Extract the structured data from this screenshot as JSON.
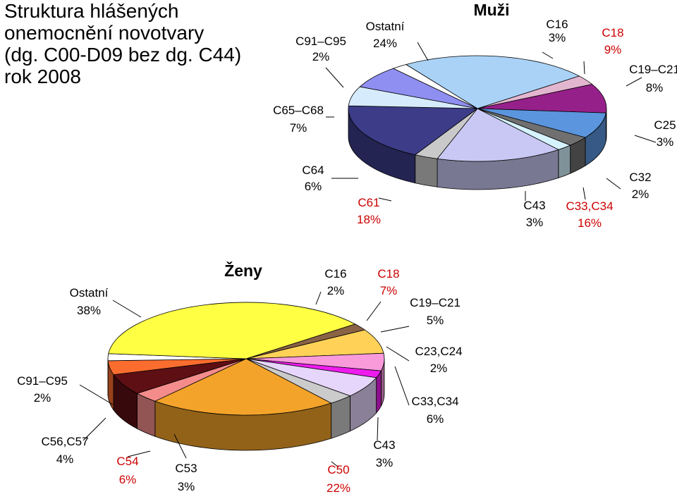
{
  "title_lines": [
    "Struktura hlášených",
    "onemocnění novotvary",
    "(dg. C00-D09 bez dg. C44)",
    "rok 2008"
  ],
  "chart_data": [
    {
      "type": "pie",
      "title": "Muži",
      "slices": [
        {
          "label": "C16",
          "pct": "3%",
          "value": 3,
          "color": "#e3b6cf",
          "label_color": "#000000"
        },
        {
          "label": "C18",
          "pct": "9%",
          "value": 9,
          "color": "#96208a",
          "label_color": "#cc0000"
        },
        {
          "label": "C19–C21",
          "pct": "8%",
          "value": 8,
          "color": "#5b95dd",
          "label_color": "#000000"
        },
        {
          "label": "C25",
          "pct": "3%",
          "value": 3,
          "color": "#707070",
          "label_color": "#000000"
        },
        {
          "label": "C32",
          "pct": "2%",
          "value": 2,
          "color": "#d5f3ff",
          "label_color": "#000000"
        },
        {
          "label": "C33,C34",
          "pct": "16%",
          "value": 16,
          "color": "#c9c8f4",
          "label_color": "#cc0000"
        },
        {
          "label": "C43",
          "pct": "3%",
          "value": 3,
          "color": "#c9c9c9",
          "label_color": "#000000"
        },
        {
          "label": "C61",
          "pct": "18%",
          "value": 18,
          "color": "#3c3c88",
          "label_color": "#cc0000"
        },
        {
          "label": "C64",
          "pct": "6%",
          "value": 6,
          "color": "#d6ecfc",
          "label_color": "#000000"
        },
        {
          "label": "C65–C68",
          "pct": "7%",
          "value": 7,
          "color": "#8f8ff2",
          "label_color": "#000000"
        },
        {
          "label": "C91–C95",
          "pct": "2%",
          "value": 2,
          "color": "#ffffff",
          "label_color": "#000000"
        },
        {
          "label": "Ostatní",
          "pct": "24%",
          "value": 24,
          "color": "#a9d2f6",
          "label_color": "#000000"
        }
      ]
    },
    {
      "type": "pie",
      "title": "Ženy",
      "slices": [
        {
          "label": "C16",
          "pct": "2%",
          "value": 2,
          "color": "#8a6246",
          "label_color": "#000000"
        },
        {
          "label": "C18",
          "pct": "7%",
          "value": 7,
          "color": "#ffd257",
          "label_color": "#cc0000"
        },
        {
          "label": "C19–C21",
          "pct": "5%",
          "value": 5,
          "color": "#f99adb",
          "label_color": "#000000"
        },
        {
          "label": "C23,C24",
          "pct": "2%",
          "value": 2,
          "color": "#ee1bee",
          "label_color": "#000000"
        },
        {
          "label": "C33,C34",
          "pct": "6%",
          "value": 6,
          "color": "#e6d6fb",
          "label_color": "#000000"
        },
        {
          "label": "C43",
          "pct": "3%",
          "value": 3,
          "color": "#cbcbcb",
          "label_color": "#000000"
        },
        {
          "label": "C50",
          "pct": "22%",
          "value": 22,
          "color": "#f3a32a",
          "label_color": "#cc0000"
        },
        {
          "label": "C53",
          "pct": "3%",
          "value": 3,
          "color": "#f58c8c",
          "label_color": "#000000"
        },
        {
          "label": "C54",
          "pct": "6%",
          "value": 6,
          "color": "#5e0f14",
          "label_color": "#cc0000"
        },
        {
          "label": "C56,C57",
          "pct": "4%",
          "value": 4,
          "color": "#fb6d2e",
          "label_color": "#000000"
        },
        {
          "label": "C91–C95",
          "pct": "2%",
          "value": 2,
          "color": "#ffffff",
          "label_color": "#000000"
        },
        {
          "label": "Ostatní",
          "pct": "38%",
          "value": 38,
          "color": "#ffff44",
          "label_color": "#000000"
        }
      ]
    }
  ]
}
